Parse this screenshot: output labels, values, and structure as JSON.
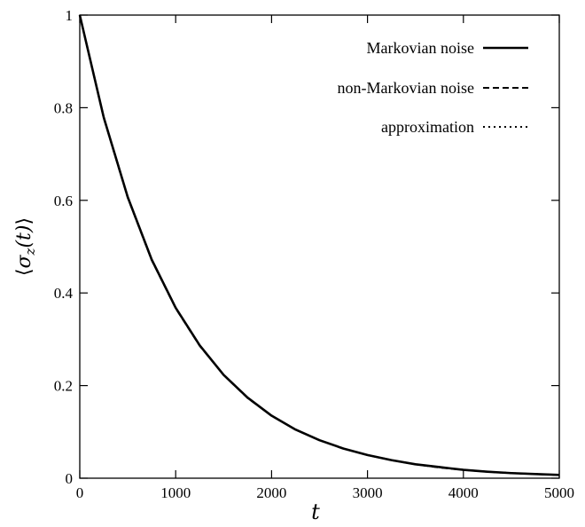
{
  "chart_data": {
    "type": "line",
    "title": "",
    "xlabel": "t",
    "ylabel": "⟨σz(t)⟩",
    "ylabel_parts": {
      "open": "⟨",
      "sigma": "σ",
      "sub": "z",
      "arg": "(t)",
      "close": "⟩"
    },
    "xlim": [
      0,
      5000
    ],
    "ylim": [
      0,
      1
    ],
    "x_ticks": [
      0,
      1000,
      2000,
      3000,
      4000,
      5000
    ],
    "x_tick_labels": [
      "0",
      "1000",
      "2000",
      "3000",
      "4000",
      "5000"
    ],
    "y_ticks": [
      0,
      0.2,
      0.4,
      0.6,
      0.8,
      1
    ],
    "y_tick_labels": [
      "0",
      "0.2",
      "0.4",
      "0.6",
      "0.8",
      "1"
    ],
    "grid": false,
    "legend_position": "top-right",
    "x": [
      0,
      250,
      500,
      750,
      1000,
      1250,
      1500,
      1750,
      2000,
      2250,
      2500,
      2750,
      3000,
      3250,
      3500,
      3750,
      4000,
      4250,
      4500,
      4750,
      5000
    ],
    "series": [
      {
        "name": "Markovian noise",
        "style": "solid",
        "color": "#000000",
        "values": [
          1.0,
          0.779,
          0.607,
          0.472,
          0.368,
          0.287,
          0.223,
          0.174,
          0.135,
          0.105,
          0.082,
          0.064,
          0.05,
          0.039,
          0.03,
          0.024,
          0.018,
          0.014,
          0.011,
          0.009,
          0.007
        ]
      },
      {
        "name": "non-Markovian noise",
        "style": "dashed",
        "color": "#000000",
        "values": [
          1.0,
          0.778,
          0.606,
          0.471,
          0.367,
          0.286,
          0.223,
          0.173,
          0.135,
          0.105,
          0.082,
          0.064,
          0.05,
          0.039,
          0.03,
          0.023,
          0.018,
          0.014,
          0.011,
          0.009,
          0.007
        ]
      },
      {
        "name": "approximation",
        "style": "dotted",
        "color": "#000000",
        "values": [
          1.0,
          0.779,
          0.607,
          0.472,
          0.368,
          0.287,
          0.223,
          0.174,
          0.135,
          0.105,
          0.082,
          0.064,
          0.05,
          0.039,
          0.03,
          0.024,
          0.018,
          0.014,
          0.011,
          0.009,
          0.007
        ]
      }
    ]
  }
}
